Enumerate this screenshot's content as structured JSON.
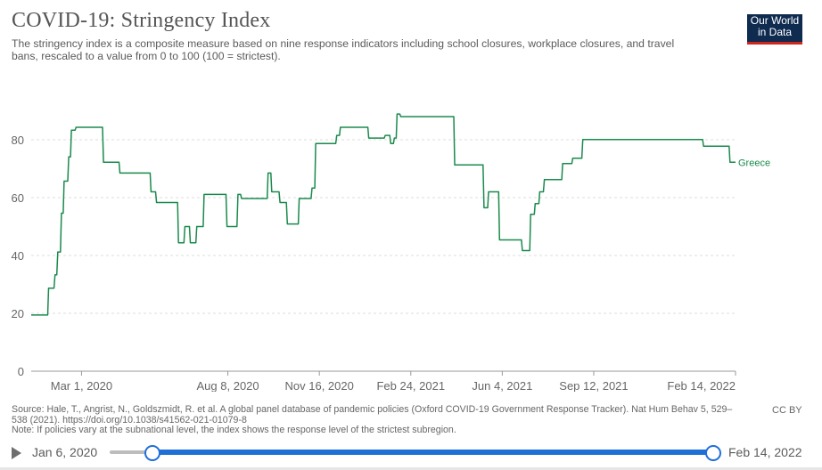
{
  "header": {
    "title": "COVID-19: Stringency Index",
    "subtitle": "The stringency index is a composite measure based on nine response indicators including school closures, workplace closures, and travel bans, rescaled to a value from 0 to 100 (100 = strictest).",
    "logo_line1": "Our World",
    "logo_line2": "in Data"
  },
  "colors": {
    "series": "#1a8a4c",
    "logo_bg": "#0f2b50",
    "logo_bar": "#ce261e",
    "slider": "#1f6fd8"
  },
  "chart_data": {
    "type": "line",
    "title": "COVID-19: Stringency Index",
    "ylim": [
      0,
      100
    ],
    "yticks": [
      "0",
      "20",
      "40",
      "60",
      "80"
    ],
    "ytick_values": [
      0,
      20,
      40,
      60,
      80
    ],
    "xlim": [
      "2020-01-06",
      "2022-02-14"
    ],
    "xticks": [
      "Mar 1, 2020",
      "Aug 8, 2020",
      "Nov 16, 2020",
      "Feb 24, 2021",
      "Jun 4, 2021",
      "Sep 12, 2021",
      "Feb 14, 2022"
    ],
    "xtick_dates": [
      "2020-03-01",
      "2020-08-08",
      "2020-11-16",
      "2021-02-24",
      "2021-06-04",
      "2021-09-12",
      "2022-02-14"
    ],
    "grid": true,
    "series": [
      {
        "name": "Greece",
        "x": [
          "2020-01-06",
          "2020-01-24",
          "2020-01-25",
          "2020-01-31",
          "2020-02-01",
          "2020-02-03",
          "2020-02-04",
          "2020-02-07",
          "2020-02-08",
          "2020-02-10",
          "2020-02-11",
          "2020-02-15",
          "2020-02-16",
          "2020-02-18",
          "2020-02-19",
          "2020-02-23",
          "2020-02-24",
          "2020-02-27",
          "2020-02-28",
          "2020-03-01",
          "2020-03-02",
          "2020-03-24",
          "2020-03-25",
          "2020-04-11",
          "2020-04-12",
          "2020-04-23",
          "2020-04-24",
          "2020-05-15",
          "2020-05-16",
          "2020-05-21",
          "2020-05-22",
          "2020-06-14",
          "2020-06-15",
          "2020-06-21",
          "2020-06-22",
          "2020-06-27",
          "2020-06-28",
          "2020-07-04",
          "2020-07-05",
          "2020-07-12",
          "2020-07-13",
          "2020-07-18",
          "2020-07-19",
          "2020-08-06",
          "2020-08-07",
          "2020-08-18",
          "2020-08-19",
          "2020-08-22",
          "2020-08-23",
          "2020-09-20",
          "2020-09-21",
          "2020-09-24",
          "2020-09-25",
          "2020-10-03",
          "2020-10-04",
          "2020-10-11",
          "2020-10-12",
          "2020-10-24",
          "2020-10-25",
          "2020-11-07",
          "2020-11-08",
          "2020-11-11",
          "2020-11-12",
          "2020-12-04",
          "2020-12-05",
          "2020-12-08",
          "2020-12-09",
          "2021-01-08",
          "2021-01-09",
          "2021-01-26",
          "2021-01-27",
          "2021-02-01",
          "2021-02-02",
          "2021-02-05",
          "2021-02-06",
          "2021-02-08",
          "2021-02-09",
          "2021-02-12",
          "2021-02-13",
          "2021-03-01",
          "2021-03-02",
          "2021-04-12",
          "2021-04-13",
          "2021-05-14",
          "2021-05-15",
          "2021-05-19",
          "2021-05-20",
          "2021-05-31",
          "2021-06-01",
          "2021-06-25",
          "2021-06-26",
          "2021-07-04",
          "2021-07-05",
          "2021-07-09",
          "2021-07-10",
          "2021-07-14",
          "2021-07-15",
          "2021-07-19",
          "2021-07-20",
          "2021-08-08",
          "2021-08-09",
          "2021-08-19",
          "2021-08-20",
          "2021-08-30",
          "2021-08-31",
          "2022-01-09",
          "2022-01-10",
          "2022-02-07",
          "2022-02-08",
          "2022-02-14"
        ],
        "y": [
          19.4,
          19.4,
          28.7,
          28.7,
          33.3,
          33.3,
          41.2,
          41.2,
          54.6,
          54.6,
          65.7,
          65.7,
          74.1,
          74.1,
          83.3,
          83.3,
          84.3,
          84.3,
          84.3,
          84.3,
          84.3,
          84.3,
          72.2,
          72.2,
          68.5,
          68.5,
          68.5,
          68.5,
          62.0,
          62.0,
          58.3,
          58.3,
          44.4,
          44.4,
          50.0,
          50.0,
          44.4,
          44.4,
          50.0,
          50.0,
          61.1,
          61.1,
          61.1,
          61.1,
          50.0,
          50.0,
          61.1,
          61.1,
          59.7,
          59.7,
          68.5,
          68.5,
          62.0,
          62.0,
          58.3,
          58.3,
          50.9,
          50.9,
          59.7,
          59.7,
          63.3,
          63.3,
          78.7,
          78.7,
          81.5,
          81.5,
          84.3,
          84.3,
          80.6,
          80.6,
          81.5,
          81.5,
          78.7,
          78.7,
          80.6,
          80.6,
          88.9,
          88.9,
          88.0,
          88.0,
          88.0,
          88.0,
          71.3,
          71.3,
          56.5,
          56.5,
          62.0,
          62.0,
          45.4,
          45.4,
          41.7,
          41.7,
          54.2,
          54.2,
          57.9,
          57.9,
          62.0,
          62.0,
          66.2,
          66.2,
          71.8,
          71.8,
          73.6,
          73.6,
          80.1,
          80.1,
          77.8,
          77.8,
          72.2,
          72.2
        ]
      }
    ]
  },
  "footer": {
    "source": "Source: Hale, T., Angrist, N., Goldszmidt, R. et al. A global panel database of pandemic policies (Oxford COVID-19 Government Response Tracker). Nat Hum Behav 5, 529–538 (2021). https://doi.org/10.1038/s41562-021-01079-8",
    "note": "Note: If policies vary at the subnational level, the index shows the response level of the strictest subregion.",
    "license": "CC BY"
  },
  "timeline": {
    "start_label": "Jan 6, 2020",
    "end_label": "Feb 14, 2022"
  }
}
